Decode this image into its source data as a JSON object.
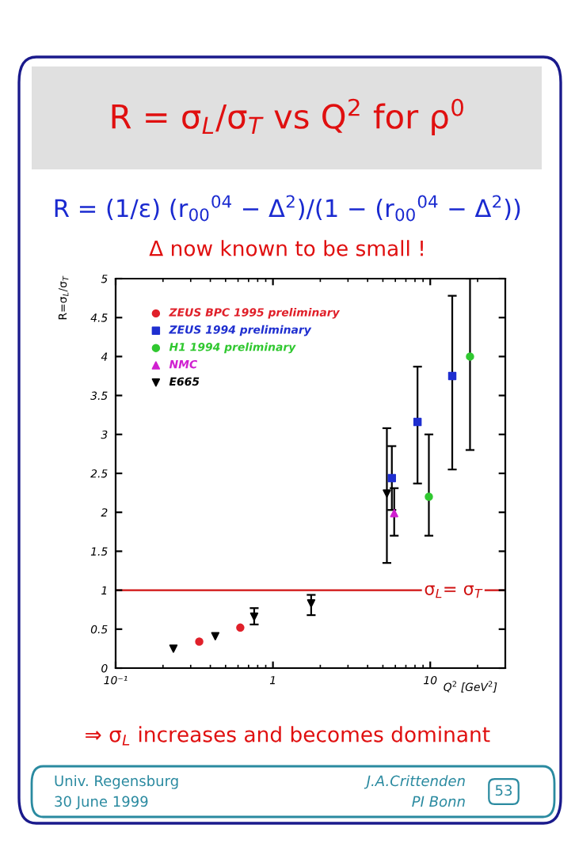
{
  "chart_data": {
    "type": "scatter",
    "title": "R = σ$_{L}$/σ$_{T}$ vs Q$^{2}$ for ρ$^{0}$",
    "subtitle": "R = (1/ε) (r$_{00}$$^{04}$ − Δ$^{2}$)/(1 − (r$_{00}$$^{04}$ − Δ$^{2}$))",
    "xlabel": "Q$^{2}$ [GeV$^{2}$]",
    "ylabel": "R=σ$_{L}$/σ$_{T}$",
    "annotations": [
      "Δ now known to be small !",
      "⇒ σ$_{L}$ increases and becomes dominant",
      "Univ. Regensburg",
      "30 June 1999",
      "J.A.Crittenden",
      "PI Bonn",
      "53"
    ],
    "series": [
      {
        "name": "ZEUS BPC 1995 preliminary",
        "color": "#e0202a",
        "marker": "circle",
        "x": [
          0.34,
          0.62
        ],
        "values": [
          0.34,
          0.52
        ],
        "errors": [
          null,
          null
        ]
      },
      {
        "name": "ZEUS 1994 preliminary",
        "color": "#1f2fd0",
        "marker": "square",
        "x": [
          5.7,
          8.3,
          13.8
        ],
        "values": [
          2.44,
          3.16,
          3.75
        ],
        "errors": [
          [
            2.03,
            2.85
          ],
          [
            2.37,
            3.87
          ],
          [
            2.55,
            4.78
          ]
        ]
      },
      {
        "name": "H1 1994 preliminary",
        "color": "#30c830",
        "marker": "circle",
        "x": [
          9.8,
          17.9
        ],
        "values": [
          2.2,
          4.0
        ],
        "errors": [
          [
            1.7,
            3.0
          ],
          [
            2.8,
            5.0
          ]
        ]
      },
      {
        "name": "NMC",
        "color": "#d020d0",
        "marker": "triangle",
        "x": [
          5.9
        ],
        "values": [
          1.99
        ],
        "errors": [
          [
            1.7,
            2.31
          ]
        ]
      },
      {
        "name": "E665",
        "color": "#000000",
        "marker": "triangle_down",
        "x": [
          0.233,
          0.43,
          0.76,
          1.75,
          5.3
        ],
        "values": [
          0.25,
          0.41,
          0.66,
          0.83,
          2.24
        ],
        "errors": [
          null,
          null,
          [
            0.56,
            0.77
          ],
          [
            0.68,
            0.94
          ],
          [
            1.35,
            3.08
          ]
        ]
      }
    ],
    "log": "x",
    "xlim": [
      0.1,
      30
    ],
    "xticks": [
      {
        "value": 0.1,
        "label": "10⁻¹"
      },
      1,
      10
    ],
    "ylim": [
      0,
      5
    ],
    "yticks": [
      0,
      0.5,
      1,
      1.5,
      2,
      2.5,
      3,
      3.5,
      4,
      4.5,
      5
    ],
    "ref_lines": [
      {
        "axis": "y",
        "value": 1,
        "label": "σ$_{L}$= σ$_{T}$",
        "color": "#d01010"
      }
    ],
    "legend": "top left",
    "grid": false
  }
}
